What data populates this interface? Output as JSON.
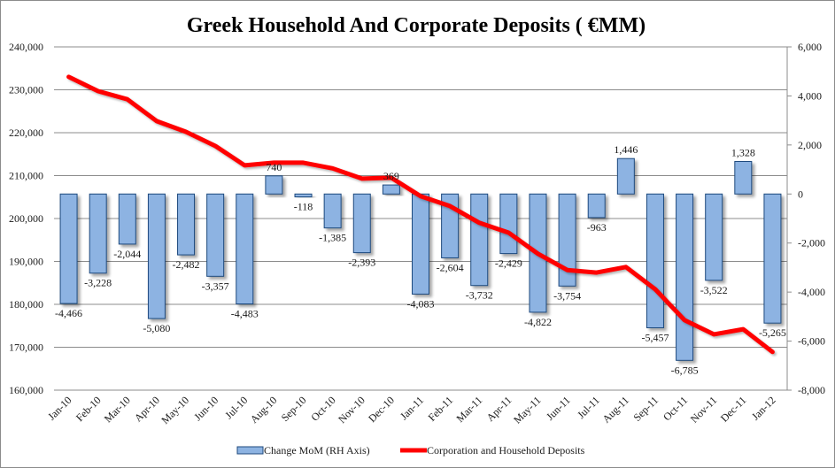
{
  "chart_data": {
    "type": "bar+line",
    "title": "Greek Household And Corporate Deposits ( €MM)",
    "categories": [
      "Jan-10",
      "Feb-10",
      "Mar-10",
      "Apr-10",
      "May-10",
      "Jun-10",
      "Jul-10",
      "Aug-10",
      "Sep-10",
      "Oct-10",
      "Nov-10",
      "Dec-10",
      "Jan-11",
      "Feb-11",
      "Mar-11",
      "Apr-11",
      "May-11",
      "Jun-11",
      "Jul-11",
      "Aug-11",
      "Sep-11",
      "Oct-11",
      "Nov-11",
      "Dec-11",
      "Jan-12"
    ],
    "series": [
      {
        "name": "Change MoM (RH Axis)",
        "type": "bar",
        "axis": "right",
        "color": "#8db3e2",
        "border_color": "#1f497d",
        "values": [
          -4466,
          -3228,
          -2044,
          -5080,
          -2482,
          -3357,
          -4483,
          740,
          -118,
          -1385,
          -2393,
          369,
          -4083,
          -2604,
          -3732,
          -2429,
          -4822,
          -3754,
          -963,
          1446,
          -5457,
          -6785,
          -3522,
          1328,
          -5265
        ],
        "labels": [
          "-4,466",
          "-3,228",
          "-2,044",
          "-5,080",
          "-2,482",
          "-3,357",
          "-4,483",
          "740",
          "-118",
          "-1,385",
          "-2,393",
          "369",
          "-4,083",
          "-2,604",
          "-3,732",
          "-2,429",
          "-4,822",
          "-3,754",
          "-963",
          "1,446",
          "-5,457",
          "-6,785",
          "-3,522",
          "1,328",
          "-5,265"
        ]
      },
      {
        "name": "Corporation and Household Deposits",
        "type": "line",
        "axis": "left",
        "color": "#ff0000",
        "values": [
          233000,
          229700,
          227800,
          222700,
          220200,
          216900,
          212400,
          213000,
          213000,
          211700,
          209300,
          209500,
          205200,
          202900,
          199000,
          196700,
          191800,
          188000,
          187400,
          188700,
          183500,
          176300,
          173000,
          174200,
          168900
        ]
      }
    ],
    "left_axis": {
      "ylim": [
        160000,
        240000
      ],
      "ticks": [
        240000,
        230000,
        220000,
        210000,
        200000,
        190000,
        180000,
        170000,
        160000
      ],
      "tick_labels": [
        "240,000",
        "230,000",
        "220,000",
        "210,000",
        "200,000",
        "190,000",
        "180,000",
        "170,000",
        "160,000"
      ]
    },
    "right_axis": {
      "ylim": [
        -8000,
        6000
      ],
      "ticks": [
        6000,
        4000,
        2000,
        0,
        -2000,
        -4000,
        -6000,
        -8000
      ],
      "tick_labels": [
        "6,000",
        "4,000",
        "2,000",
        "0",
        "-2,000",
        "-4,000",
        "-6,000",
        "-8,000"
      ]
    },
    "grid": true,
    "legend": "bottom",
    "xlabel": "",
    "ylabel": ""
  }
}
